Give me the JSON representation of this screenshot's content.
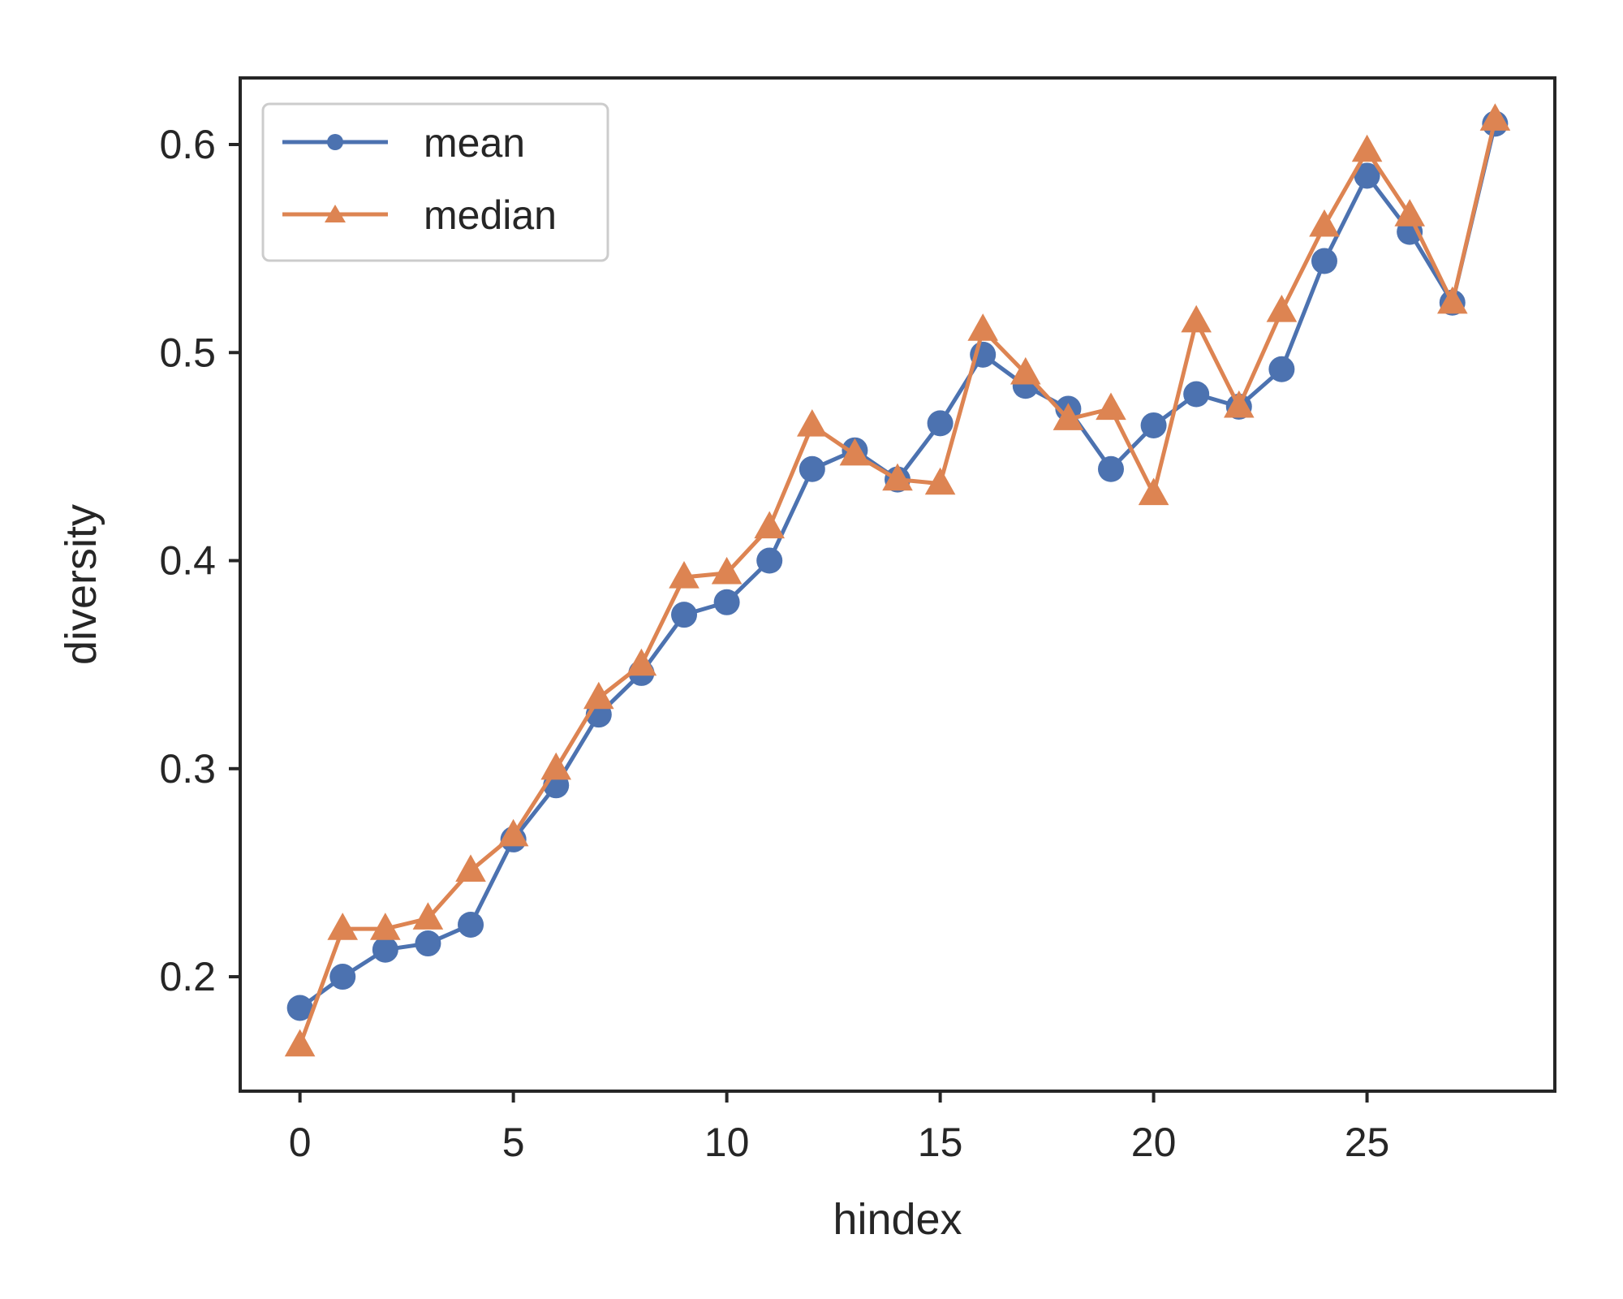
{
  "chart_data": {
    "type": "line",
    "xlabel": "hindex",
    "ylabel": "diversity",
    "xlim": [
      -1.4,
      29.4
    ],
    "ylim": [
      0.145,
      0.632
    ],
    "xticks": [
      0,
      5,
      10,
      15,
      20,
      25
    ],
    "xtick_labels": [
      "0",
      "5",
      "10",
      "15",
      "20",
      "25"
    ],
    "yticks": [
      0.2,
      0.3,
      0.4,
      0.5,
      0.6
    ],
    "ytick_labels": [
      "0.2",
      "0.3",
      "0.4",
      "0.5",
      "0.6"
    ],
    "grid": false,
    "legend_position": "top-left",
    "x": [
      0,
      1,
      2,
      3,
      4,
      5,
      6,
      7,
      8,
      9,
      10,
      11,
      12,
      13,
      14,
      15,
      16,
      17,
      18,
      19,
      20,
      21,
      22,
      23,
      24,
      25,
      26,
      27,
      28
    ],
    "series": [
      {
        "name": "mean",
        "color": "#4c72b0",
        "marker": "circle",
        "values": [
          0.185,
          0.2,
          0.213,
          0.216,
          0.225,
          0.266,
          0.292,
          0.326,
          0.346,
          0.374,
          0.38,
          0.4,
          0.444,
          0.453,
          0.439,
          0.466,
          0.499,
          0.484,
          0.473,
          0.444,
          0.465,
          0.48,
          0.474,
          0.492,
          0.544,
          0.585,
          0.558,
          0.524,
          0.61
        ]
      },
      {
        "name": "median",
        "color": "#dd8452",
        "marker": "triangle",
        "values": [
          0.167,
          0.223,
          0.223,
          0.228,
          0.251,
          0.268,
          0.3,
          0.334,
          0.35,
          0.392,
          0.394,
          0.416,
          0.465,
          0.451,
          0.439,
          0.437,
          0.511,
          0.49,
          0.468,
          0.473,
          0.432,
          0.515,
          0.474,
          0.52,
          0.561,
          0.597,
          0.566,
          0.524,
          0.612
        ]
      }
    ]
  }
}
